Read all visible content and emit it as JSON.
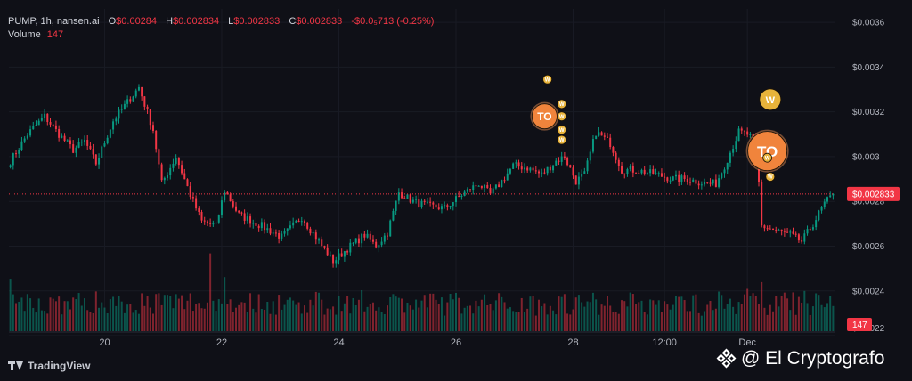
{
  "legend": {
    "symbol": "PUMP, 1h, nansen.ai",
    "o_label": "O",
    "o_value": "$0.00284",
    "h_label": "H",
    "h_value": "$0.002834",
    "l_label": "L",
    "l_value": "$0.002833",
    "c_label": "C",
    "c_value": "$0.002833",
    "change": "-$0.0₅713 (-0.25%)",
    "volume_label": "Volume",
    "volume_value": "147"
  },
  "brand": "TradingView",
  "watermark": "@ El Cryptografo",
  "colors": {
    "background": "#0f1017",
    "up": "#089981",
    "down": "#f23645",
    "axis_text": "#b2b5be",
    "label_bg": "#f23645",
    "marker": "#e8b33a",
    "marker_orange": "#f0843c"
  },
  "chart_data": {
    "type": "candlestick",
    "ylim": [
      0.00222,
      0.00366
    ],
    "y_ticks": [
      "$0.0036",
      "$0.0034",
      "$0.0032",
      "$0.003",
      "$0.0028",
      "$0.0026",
      "$0.0024",
      "$0.0022"
    ],
    "y_tick_values": [
      0.0036,
      0.0034,
      0.0032,
      0.003,
      0.0028,
      0.0026,
      0.0024,
      0.0022
    ],
    "x_ticks": [
      "20",
      "22",
      "24",
      "26",
      "28",
      "12:00",
      "Dec"
    ],
    "x_tick_index": [
      33,
      74,
      115,
      156,
      197,
      229,
      258
    ],
    "last_price_label": "$0.002833",
    "last_price": 0.002833,
    "volume_label": "147",
    "volume_max": 100,
    "keypoints": [
      [
        0,
        0.00298
      ],
      [
        6,
        0.0031
      ],
      [
        12,
        0.00318
      ],
      [
        17,
        0.0031
      ],
      [
        22,
        0.00303
      ],
      [
        26,
        0.00307
      ],
      [
        30,
        0.00297
      ],
      [
        36,
        0.00316
      ],
      [
        45,
        0.00331
      ],
      [
        50,
        0.00312
      ],
      [
        53,
        0.00288
      ],
      [
        58,
        0.003
      ],
      [
        63,
        0.00283
      ],
      [
        67,
        0.00271
      ],
      [
        72,
        0.00269
      ],
      [
        75,
        0.00285
      ],
      [
        80,
        0.00274
      ],
      [
        88,
        0.00269
      ],
      [
        95,
        0.00264
      ],
      [
        102,
        0.00273
      ],
      [
        108,
        0.00262
      ],
      [
        113,
        0.00253
      ],
      [
        118,
        0.00259
      ],
      [
        124,
        0.00265
      ],
      [
        128,
        0.0026
      ],
      [
        132,
        0.00266
      ],
      [
        136,
        0.00284
      ],
      [
        141,
        0.0028
      ],
      [
        146,
        0.00278
      ],
      [
        152,
        0.00277
      ],
      [
        158,
        0.00283
      ],
      [
        164,
        0.00288
      ],
      [
        168,
        0.00283
      ],
      [
        172,
        0.00289
      ],
      [
        176,
        0.00296
      ],
      [
        181,
        0.00295
      ],
      [
        186,
        0.00292
      ],
      [
        191,
        0.00298
      ],
      [
        194,
        0.003
      ],
      [
        198,
        0.00289
      ],
      [
        201,
        0.00292
      ],
      [
        205,
        0.00311
      ],
      [
        210,
        0.00306
      ],
      [
        214,
        0.00294
      ],
      [
        219,
        0.00294
      ],
      [
        226,
        0.00292
      ],
      [
        232,
        0.0029
      ],
      [
        237,
        0.0029
      ],
      [
        243,
        0.00288
      ],
      [
        247,
        0.00288
      ],
      [
        250,
        0.00296
      ],
      [
        255,
        0.00311
      ],
      [
        258,
        0.0031
      ],
      [
        261,
        0.00306
      ],
      [
        262,
        0.00288
      ],
      [
        263,
        0.00269
      ],
      [
        268,
        0.00267
      ],
      [
        273,
        0.00265
      ],
      [
        277,
        0.00262
      ],
      [
        281,
        0.0027
      ],
      [
        285,
        0.00279
      ],
      [
        288,
        0.00283
      ]
    ],
    "markers": [
      {
        "index": 188,
        "price": 0.003345,
        "size": "small",
        "text": "W"
      },
      {
        "index": 193,
        "price": 0.003235,
        "size": "small",
        "text": "W"
      },
      {
        "index": 193,
        "price": 0.00318,
        "size": "small",
        "text": "W"
      },
      {
        "index": 193,
        "price": 0.00312,
        "size": "small",
        "text": "W"
      },
      {
        "index": 193,
        "price": 0.003075,
        "size": "small",
        "text": "W"
      },
      {
        "index": 188,
        "price": 0.00316,
        "size": "small",
        "text": "W"
      },
      {
        "index": 187,
        "price": 0.00318,
        "size": "medium-orange",
        "text": "TO"
      },
      {
        "index": 266,
        "price": 0.003255,
        "size": "medium",
        "text": "W"
      },
      {
        "index": 265,
        "price": 0.003025,
        "size": "large-orange",
        "text": "TO"
      },
      {
        "index": 265,
        "price": 0.002995,
        "size": "small",
        "text": "W"
      },
      {
        "index": 266,
        "price": 0.00291,
        "size": "small",
        "text": "W"
      }
    ]
  }
}
